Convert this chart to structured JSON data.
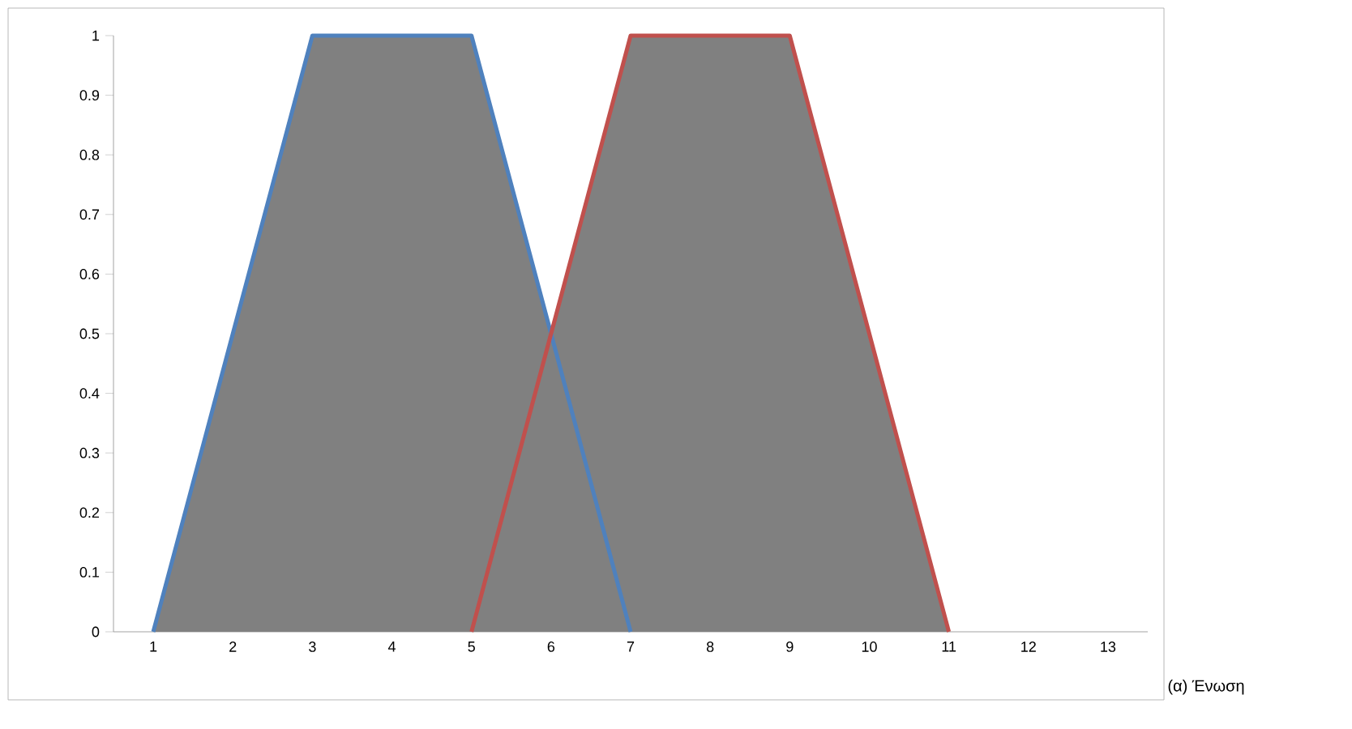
{
  "chart_data": {
    "type": "area",
    "categories": [
      "1",
      "2",
      "3",
      "4",
      "5",
      "6",
      "7",
      "8",
      "9",
      "10",
      "11",
      "12",
      "13"
    ],
    "series": [
      {
        "color": "#808080",
        "values": [
          0,
          0.5,
          1,
          1,
          1,
          0.5,
          1,
          1,
          1,
          0.5,
          0,
          null,
          null
        ]
      },
      {
        "type": "line",
        "color": "#4f81bd",
        "values": [
          0,
          0.5,
          1,
          1,
          1,
          0.5,
          0,
          null,
          null,
          null,
          null,
          null,
          null
        ]
      },
      {
        "type": "line",
        "color": "#c0504d",
        "values": [
          null,
          null,
          null,
          null,
          0,
          0.5,
          1,
          1,
          1,
          0.5,
          0,
          null,
          null
        ]
      }
    ],
    "ylim": [
      0,
      1
    ],
    "yticks": [
      0,
      0.1,
      0.2,
      0.3,
      0.4,
      0.5,
      0.6,
      0.7,
      0.8,
      0.9,
      1
    ],
    "annotations": [
      "(α) Ένωση"
    ]
  }
}
